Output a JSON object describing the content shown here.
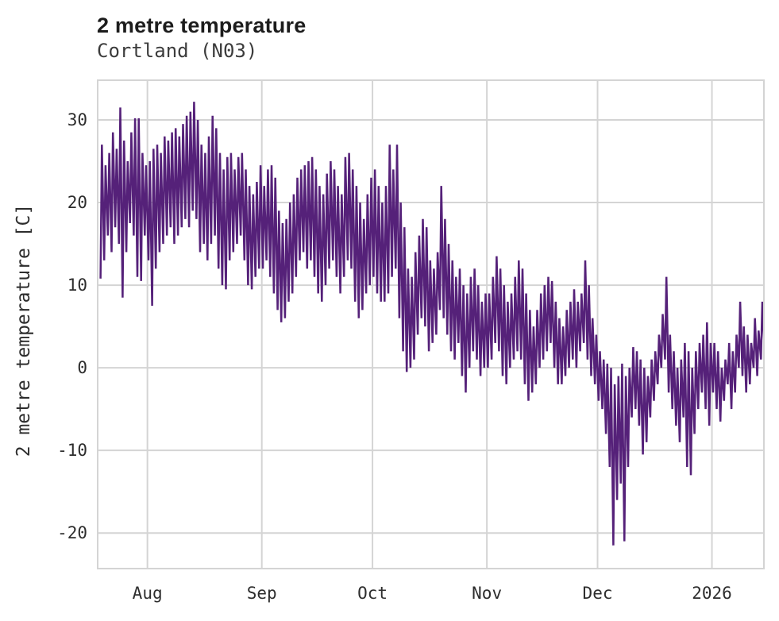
{
  "header": {
    "title": "2 metre temperature",
    "subtitle": "Cortland (N03)"
  },
  "chart_data": {
    "type": "line",
    "title": "2 metre temperature",
    "subtitle": "Cortland (N03)",
    "ylabel": "2 metre temperature [C]",
    "xlabel": "",
    "legend": "none",
    "grid": "on",
    "line_color": "#552179",
    "grid_color": "#d4d4d4",
    "axis_text_color": "#2d2d2d",
    "background_color": "#ffffff",
    "ylim": [
      -24.4,
      34.9
    ],
    "yticks": [
      30,
      20,
      10,
      0,
      -10,
      -20
    ],
    "xlim_days": [
      -0.7,
      180.3
    ],
    "xticks": [
      {
        "label": "Aug",
        "day": 13
      },
      {
        "label": "Sep",
        "day": 44
      },
      {
        "label": "Oct",
        "day": 74
      },
      {
        "label": "Nov",
        "day": 105
      },
      {
        "label": "Dec",
        "day": 135
      },
      {
        "label": "2026",
        "day": 166
      }
    ],
    "sampling_note": "hourly trace summarized as daily min/max; day 0 = first plotted day (mid-July)",
    "daily_max": [
      27,
      24.5,
      26,
      28.5,
      26.5,
      31.5,
      27.5,
      25,
      28.5,
      30.2,
      30.2,
      26,
      24.5,
      25,
      26.5,
      27,
      26,
      28,
      27.5,
      28.5,
      29,
      28,
      29.5,
      30.5,
      31,
      32.2,
      30,
      27,
      26,
      28,
      30.5,
      29,
      26,
      24,
      25.5,
      26,
      24,
      25.5,
      26,
      24,
      22,
      21,
      22.5,
      24.5,
      22,
      24,
      24.5,
      23,
      19,
      17.5,
      18,
      20,
      21,
      23,
      24,
      24.5,
      25,
      25.5,
      24,
      22,
      21,
      23.5,
      25,
      24,
      22,
      21,
      25.5,
      26,
      24,
      22,
      20,
      18,
      21,
      23,
      24,
      22,
      20,
      22,
      27,
      24,
      27,
      20,
      17,
      12,
      11,
      14,
      16,
      18,
      17,
      13,
      12,
      14,
      22,
      18,
      15,
      13,
      11,
      12,
      10,
      9,
      11,
      12,
      10,
      8,
      9,
      9,
      11,
      13.5,
      12,
      10,
      8,
      9,
      11,
      13,
      12,
      9,
      7,
      5,
      7,
      9,
      10,
      11,
      10.5,
      8,
      6,
      5,
      7,
      8,
      9.5,
      8,
      9,
      13,
      10,
      6,
      4,
      2,
      1,
      0.5,
      0,
      -2,
      -1,
      0.5,
      -1,
      0,
      2.5,
      2,
      1,
      0,
      -1,
      1,
      2,
      4,
      6.5,
      11,
      4,
      2,
      0,
      1,
      3,
      2,
      0,
      2,
      3,
      4,
      5.5,
      3,
      3,
      2,
      0,
      1,
      3,
      2,
      4,
      8,
      5,
      4,
      3,
      6,
      4.5,
      8,
      7.2
    ],
    "daily_min": [
      10.8,
      13,
      16,
      14,
      17,
      15,
      8.5,
      14,
      17.5,
      16,
      11,
      10.5,
      16,
      13,
      7.5,
      12,
      14,
      15,
      16,
      17,
      15,
      16,
      17,
      18,
      17,
      19,
      18,
      14,
      15,
      13,
      15,
      16,
      12,
      10,
      9.5,
      13,
      14,
      15,
      16,
      13,
      10,
      9.5,
      11,
      12,
      12,
      13,
      11,
      9,
      7,
      5.5,
      6,
      8,
      9,
      11,
      13,
      14,
      12,
      13,
      11,
      9,
      8,
      10,
      12,
      13,
      11,
      9,
      11,
      13,
      12,
      8,
      6,
      7,
      9,
      10,
      11,
      9,
      8,
      8,
      9,
      11,
      12,
      6,
      2,
      -0.5,
      0,
      1,
      4,
      6,
      5,
      2,
      3,
      4,
      7,
      6,
      4,
      2,
      1,
      3,
      -1,
      -3,
      0,
      2,
      1,
      -1,
      0,
      0,
      1,
      3,
      2,
      -1,
      -2,
      0,
      1,
      2,
      1,
      -2,
      -4,
      -3,
      -2,
      0,
      1,
      2,
      3,
      0,
      -2,
      -2,
      -1,
      0,
      1,
      0,
      2,
      3,
      1,
      -1,
      -2,
      -4,
      -5,
      -8,
      -12,
      -21.5,
      -16,
      -14,
      -21,
      -12,
      -6,
      -5,
      -7,
      -10.5,
      -9,
      -6,
      -4,
      -2,
      0,
      1,
      -3,
      -5,
      -7,
      -9,
      -6,
      -12,
      -13,
      -8,
      -5,
      -3,
      -5,
      -7,
      -3,
      -5,
      -6.5,
      -4,
      -2,
      -5,
      -3,
      0,
      -1,
      -3,
      -2,
      0,
      -1,
      1,
      2
    ]
  }
}
